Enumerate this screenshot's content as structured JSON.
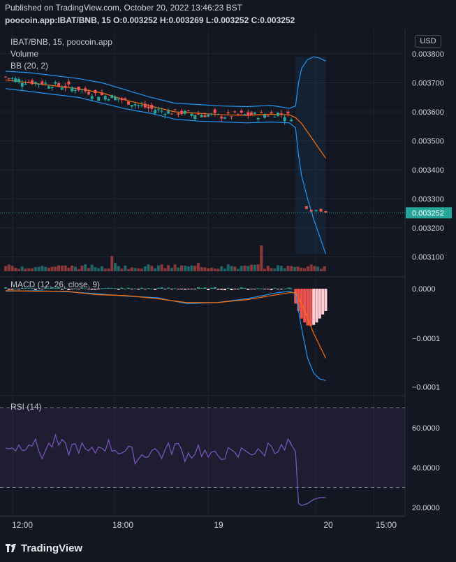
{
  "header": {
    "published": "Published on TradingView.com, October 20, 2022 13:46:23 BST",
    "ohlc": "poocoin.app:IBAT/BNB, 15  O:0.003252  H:0.003269  L:0.003252  C:0.003252"
  },
  "toolbar": {
    "currency": "USD"
  },
  "legend": {
    "symbol": "IBAT/BNB, 15, poocoin.app",
    "volume": "Volume",
    "bb": "BB (20, 2)",
    "macd": "MACD (12, 26, close, 9)",
    "rsi": "RSI (14)"
  },
  "branding": {
    "logo_text": "TradingView"
  },
  "colors": {
    "up": "#26a69a",
    "down": "#ef5350",
    "bb_band": "#2196f3",
    "basis": "#ff6d00",
    "rsi_line": "#7e57c2",
    "current_price_bg": "#26a69a"
  },
  "chart_data": [
    {
      "type": "candlestick",
      "title": "IBAT/BNB, 15, poocoin.app",
      "indicators": [
        "Volume",
        "BB (20, 2)"
      ],
      "y_ticks": [
        "0.003800",
        "0.003700",
        "0.003600",
        "0.003500",
        "0.003400",
        "0.003300",
        "0.003200",
        "0.003100"
      ],
      "ylim": [
        0.00305,
        0.00382
      ],
      "current_price": "0.003252",
      "x_ticks": [
        "12:00",
        "18:00",
        "19",
        "20",
        "15:00"
      ],
      "series": [
        {
          "name": "Close",
          "x_hours": [
            0,
            3,
            6,
            9,
            12,
            15,
            18,
            21,
            24,
            27,
            30,
            33,
            36,
            39,
            42,
            45,
            48,
            49,
            50,
            51,
            52,
            53
          ],
          "values": [
            0.00372,
            0.003705,
            0.0037,
            0.00369,
            0.00368,
            0.00366,
            0.00365,
            0.00363,
            0.00361,
            0.0036,
            0.003595,
            0.00359,
            0.003585,
            0.00359,
            0.003588,
            0.003595,
            0.00358,
            0.00327,
            0.003262,
            0.003258,
            0.00326,
            0.003252
          ]
        },
        {
          "name": "BB upper",
          "x_hours": [
            0,
            4,
            8,
            12,
            16,
            20,
            24,
            28,
            32,
            36,
            40,
            44,
            47,
            48,
            48.5,
            49,
            50,
            51,
            52,
            53
          ],
          "values": [
            0.00374,
            0.003735,
            0.003725,
            0.003715,
            0.0037,
            0.003675,
            0.00365,
            0.00363,
            0.003625,
            0.00362,
            0.003618,
            0.003622,
            0.003612,
            0.00362,
            0.0037,
            0.00375,
            0.00378,
            0.00379,
            0.003785,
            0.003775
          ]
        },
        {
          "name": "BB basis",
          "x_hours": [
            0,
            4,
            8,
            12,
            16,
            20,
            24,
            28,
            32,
            36,
            40,
            44,
            47,
            48,
            49,
            50,
            51,
            52,
            53
          ],
          "values": [
            0.00371,
            0.0037,
            0.00369,
            0.00368,
            0.003665,
            0.00364,
            0.00362,
            0.0036,
            0.003595,
            0.00359,
            0.003588,
            0.003592,
            0.00359,
            0.00358,
            0.00356,
            0.00353,
            0.0035,
            0.00347,
            0.00344
          ]
        },
        {
          "name": "BB lower",
          "x_hours": [
            0,
            4,
            8,
            12,
            16,
            20,
            24,
            28,
            32,
            36,
            40,
            44,
            47,
            48,
            48.5,
            49,
            50,
            51,
            52,
            53
          ],
          "values": [
            0.00368,
            0.00367,
            0.00366,
            0.00365,
            0.00363,
            0.00361,
            0.003595,
            0.003575,
            0.003568,
            0.003565,
            0.003562,
            0.003565,
            0.003562,
            0.003545,
            0.00345,
            0.00338,
            0.0033,
            0.00323,
            0.00317,
            0.00311
          ]
        }
      ]
    },
    {
      "type": "line",
      "title": "MACD (12, 26, close, 9)",
      "y_ticks": [
        "0.0000",
        "−0.0001",
        "−0.0001"
      ],
      "ylim": [
        -0.00019,
        1e-05
      ],
      "series": [
        {
          "name": "MACD",
          "x_hours": [
            0,
            5,
            10,
            15,
            20,
            25,
            30,
            35,
            40,
            45,
            47,
            48,
            49,
            50,
            51,
            52,
            53
          ],
          "values": [
            -5e-06,
            -4e-06,
            -6e-06,
            -1e-05,
            -1.5e-05,
            -1.8e-05,
            -3e-05,
            -2.8e-05,
            -2e-05,
            -8e-06,
            -5e-06,
            -1e-05,
            -8e-05,
            -0.00014,
            -0.00017,
            -0.000182,
            -0.000185
          ]
        },
        {
          "name": "Signal",
          "x_hours": [
            0,
            5,
            10,
            15,
            20,
            25,
            30,
            35,
            40,
            45,
            47,
            48,
            49,
            50,
            51,
            52,
            53
          ],
          "values": [
            -4e-06,
            -5e-06,
            -5e-06,
            -1.2e-05,
            -1.4e-05,
            -2e-05,
            -2.8e-05,
            -2.8e-05,
            -2.2e-05,
            -1.2e-05,
            -8e-06,
            -8e-06,
            -3e-05,
            -6e-05,
            -9e-05,
            -0.000115,
            -0.00014
          ]
        },
        {
          "name": "Histogram",
          "x_hours": [
            47,
            48,
            48.5,
            49,
            49.5,
            50,
            50.5,
            51,
            51.5,
            52,
            52.5,
            53
          ],
          "values": [
            2e-06,
            -3e-05,
            -4.5e-05,
            -6e-05,
            -6.8e-05,
            -7.4e-05,
            -7.5e-05,
            -7.3e-05,
            -6.8e-05,
            -6e-05,
            -5.2e-05,
            -4.5e-05
          ]
        }
      ]
    },
    {
      "type": "line",
      "title": "RSI (14)",
      "y_ticks": [
        "60.0000",
        "40.0000",
        "20.0000"
      ],
      "ylim": [
        16,
        76
      ],
      "bands": [
        70,
        30
      ],
      "series": [
        {
          "name": "RSI",
          "x_hours": [
            0,
            2,
            4,
            6,
            8,
            10,
            12,
            14,
            16,
            18,
            20,
            22,
            24,
            26,
            28,
            30,
            32,
            34,
            36,
            38,
            40,
            42,
            44,
            46,
            47,
            48,
            48.5,
            49,
            50,
            51,
            52,
            53
          ],
          "values": [
            52,
            50,
            54,
            47,
            53,
            49,
            51,
            46,
            52,
            50,
            48,
            45,
            49,
            47,
            51,
            46,
            50,
            44,
            48,
            45,
            50,
            46,
            52,
            48,
            53,
            48,
            22,
            21,
            22,
            24,
            25,
            25
          ]
        }
      ]
    }
  ]
}
